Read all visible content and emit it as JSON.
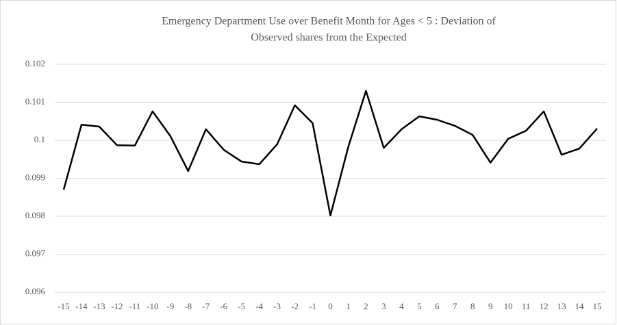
{
  "chart_data": {
    "type": "line",
    "title": [
      "Emergency Department Use over Benefit Month for Ages < 5 : Deviation of",
      "Observed shares from the Expected"
    ],
    "categories": [
      "-15",
      "-14",
      "-13",
      "-12",
      "-11",
      "-10",
      "-9",
      "-8",
      "-7",
      "-6",
      "-5",
      "-4",
      "-3",
      "-2",
      "-1",
      "0",
      "1",
      "2",
      "3",
      "4",
      "5",
      "6",
      "7",
      "8",
      "9",
      "10",
      "11",
      "12",
      "13",
      "14",
      "15"
    ],
    "values": [
      0.0987,
      0.10041,
      0.10036,
      0.09987,
      0.09986,
      0.10076,
      0.10011,
      0.09919,
      0.10029,
      0.09975,
      0.09944,
      0.09937,
      0.09989,
      0.10092,
      0.10045,
      0.09802,
      0.09982,
      0.1013,
      0.0998,
      0.10029,
      0.10063,
      0.10054,
      0.10038,
      0.10014,
      0.09941,
      0.10004,
      0.10025,
      0.10076,
      0.09962,
      0.09978,
      0.10031
    ],
    "color": "#000000",
    "ylim": [
      0.096,
      0.102
    ],
    "yticks": [
      0.096,
      0.097,
      0.098,
      0.099,
      0.1,
      0.101,
      0.102
    ],
    "grid": true
  }
}
